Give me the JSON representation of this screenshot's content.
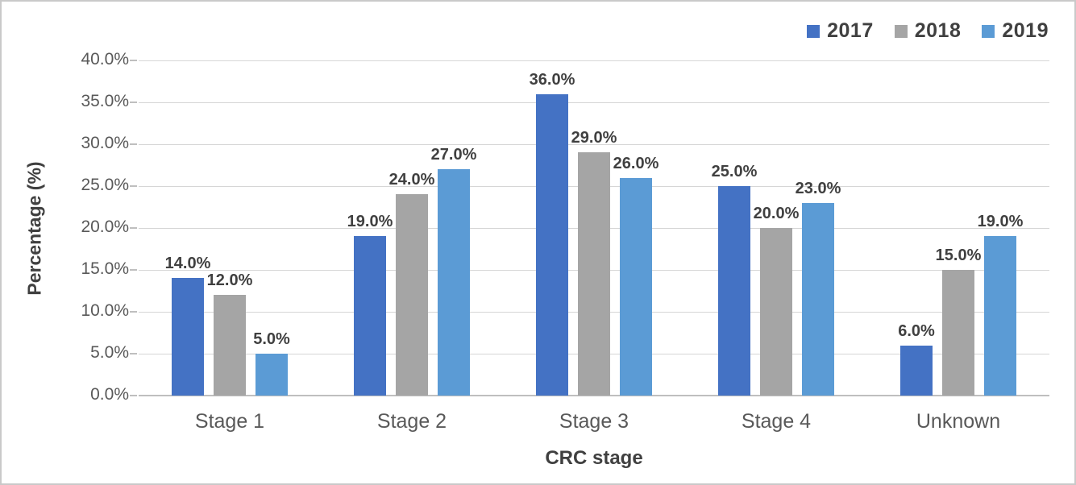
{
  "frame": {
    "background": "#ffffff",
    "border_color": "#c9c9c9"
  },
  "chart_data": {
    "type": "bar",
    "title": "",
    "xlabel": "CRC stage",
    "ylabel": "Percentage (%)",
    "ylim": [
      0,
      40
    ],
    "y_tick_step": 5,
    "y_tick_labels": [
      "0.0%",
      "5.0%",
      "10.0%",
      "15.0%",
      "20.0%",
      "25.0%",
      "30.0%",
      "35.0%",
      "40.0%"
    ],
    "grid": true,
    "legend_position": "top-right",
    "categories": [
      "Stage 1",
      "Stage 2",
      "Stage 3",
      "Stage 4",
      "Unknown"
    ],
    "series": [
      {
        "name": "2017",
        "color": "#4472C4",
        "values": [
          14,
          19,
          36,
          25,
          6
        ],
        "labels": [
          "14.0%",
          "19.0%",
          "36.0%",
          "25.0%",
          "6.0%"
        ]
      },
      {
        "name": "2018",
        "color": "#A5A5A5",
        "values": [
          12,
          24,
          29,
          20,
          15
        ],
        "labels": [
          "12.0%",
          "24.0%",
          "29.0%",
          "20.0%",
          "15.0%"
        ]
      },
      {
        "name": "2019",
        "color": "#5B9BD5",
        "values": [
          5,
          27,
          26,
          23,
          19
        ],
        "labels": [
          "5.0%",
          "27.0%",
          "26.0%",
          "23.0%",
          "19.0%"
        ]
      }
    ],
    "colors": {
      "gridline": "#d6d6d6",
      "axis_line": "#bfbfbf",
      "tick_label": "#595959",
      "data_label": "#404040",
      "axis_title": "#404040",
      "legend_text": "#404040"
    }
  }
}
